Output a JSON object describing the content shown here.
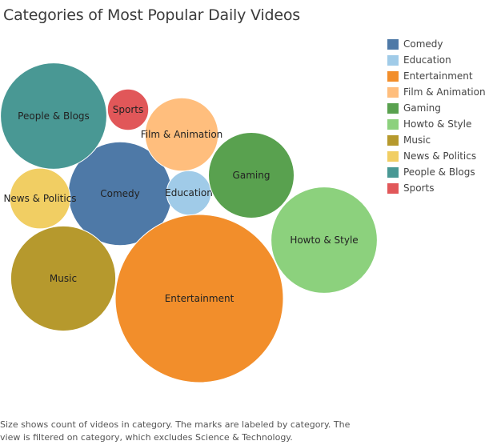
{
  "title": "Categories of Most Popular Daily Videos",
  "caption": {
    "line1": "Size shows count of videos in category.  The marks are labeled by category. The",
    "line2": "view is filtered on category, which excludes Science & Technology."
  },
  "chart_data": {
    "type": "bubble",
    "size_measure": "count of videos in category",
    "excluded_category": "Science & Technology",
    "legend_position": "right",
    "categories": [
      {
        "name": "Comedy",
        "color": "#4e79a7",
        "relative_size": 0.38
      },
      {
        "name": "Education",
        "color": "#a0cbe8",
        "relative_size": 0.07
      },
      {
        "name": "Entertainment",
        "color": "#f28e2b",
        "relative_size": 1.0
      },
      {
        "name": "Film & Animation",
        "color": "#ffbe7d",
        "relative_size": 0.19
      },
      {
        "name": "Gaming",
        "color": "#59a14f",
        "relative_size": 0.26
      },
      {
        "name": "Howto & Style",
        "color": "#8cd17d",
        "relative_size": 0.4
      },
      {
        "name": "Music",
        "color": "#b6992d",
        "relative_size": 0.39
      },
      {
        "name": "News & Politics",
        "color": "#f1ce63",
        "relative_size": 0.13
      },
      {
        "name": "People & Blogs",
        "color": "#499894",
        "relative_size": 0.4
      },
      {
        "name": "Sports",
        "color": "#e15759",
        "relative_size": 0.06
      }
    ]
  }
}
